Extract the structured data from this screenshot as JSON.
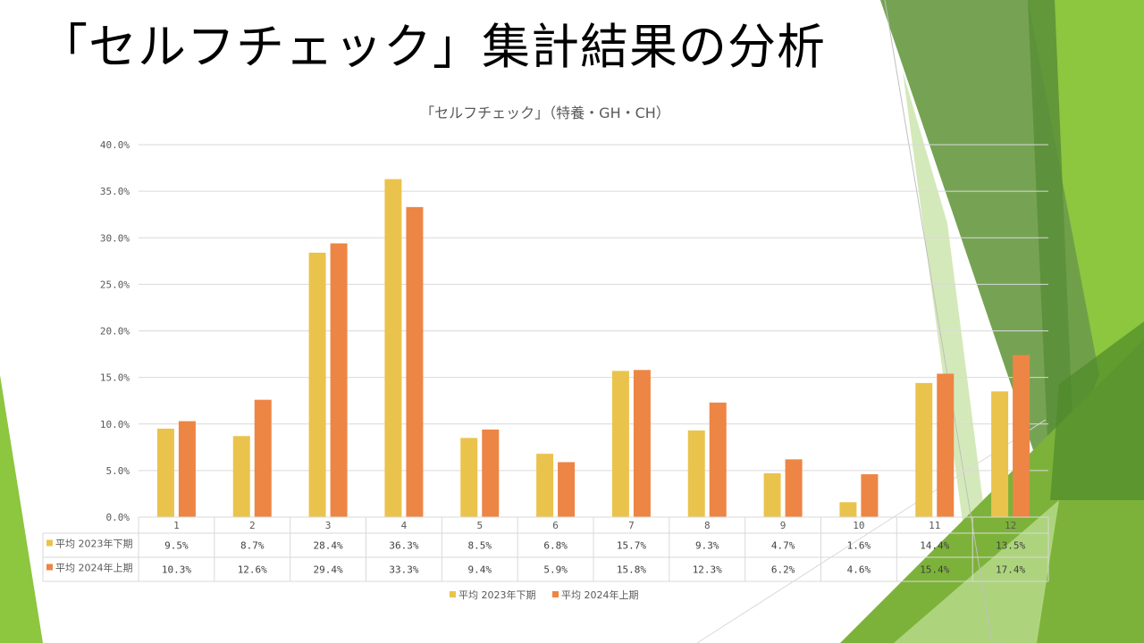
{
  "slide": {
    "title": "「セルフチェック」集計結果の分析",
    "accent_colors": [
      "#8DC63F",
      "#6E9E4A",
      "#B5D98A",
      "#4E8A2A"
    ]
  },
  "chart_data": {
    "type": "bar",
    "title": "「セルフチェック」（特養・GH・CH）",
    "categories": [
      "1",
      "2",
      "3",
      "4",
      "5",
      "6",
      "7",
      "8",
      "9",
      "10",
      "11",
      "12"
    ],
    "series": [
      {
        "name": "平均 2023年下期",
        "color": "#EAC34D",
        "values": [
          9.5,
          8.7,
          28.4,
          36.3,
          8.5,
          6.8,
          15.7,
          9.3,
          4.7,
          1.6,
          14.4,
          13.5
        ],
        "labels": [
          "9.5%",
          "8.7%",
          "28.4%",
          "36.3%",
          "8.5%",
          "6.8%",
          "15.7%",
          "9.3%",
          "4.7%",
          "1.6%",
          "14.4%",
          "13.5%"
        ]
      },
      {
        "name": "平均 2024年上期",
        "color": "#ED8545",
        "values": [
          10.3,
          12.6,
          29.4,
          33.3,
          9.4,
          5.9,
          15.8,
          12.3,
          6.2,
          4.6,
          15.4,
          17.4
        ],
        "labels": [
          "10.3%",
          "12.6%",
          "29.4%",
          "33.3%",
          "9.4%",
          "5.9%",
          "15.8%",
          "12.3%",
          "6.2%",
          "4.6%",
          "15.4%",
          "17.4%"
        ]
      }
    ],
    "yticks": [
      "0.0%",
      "5.0%",
      "10.0%",
      "15.0%",
      "20.0%",
      "25.0%",
      "30.0%",
      "35.0%",
      "40.0%"
    ],
    "ylim": [
      0,
      40
    ],
    "grid": true,
    "legend": "bottom",
    "data_table": true
  }
}
